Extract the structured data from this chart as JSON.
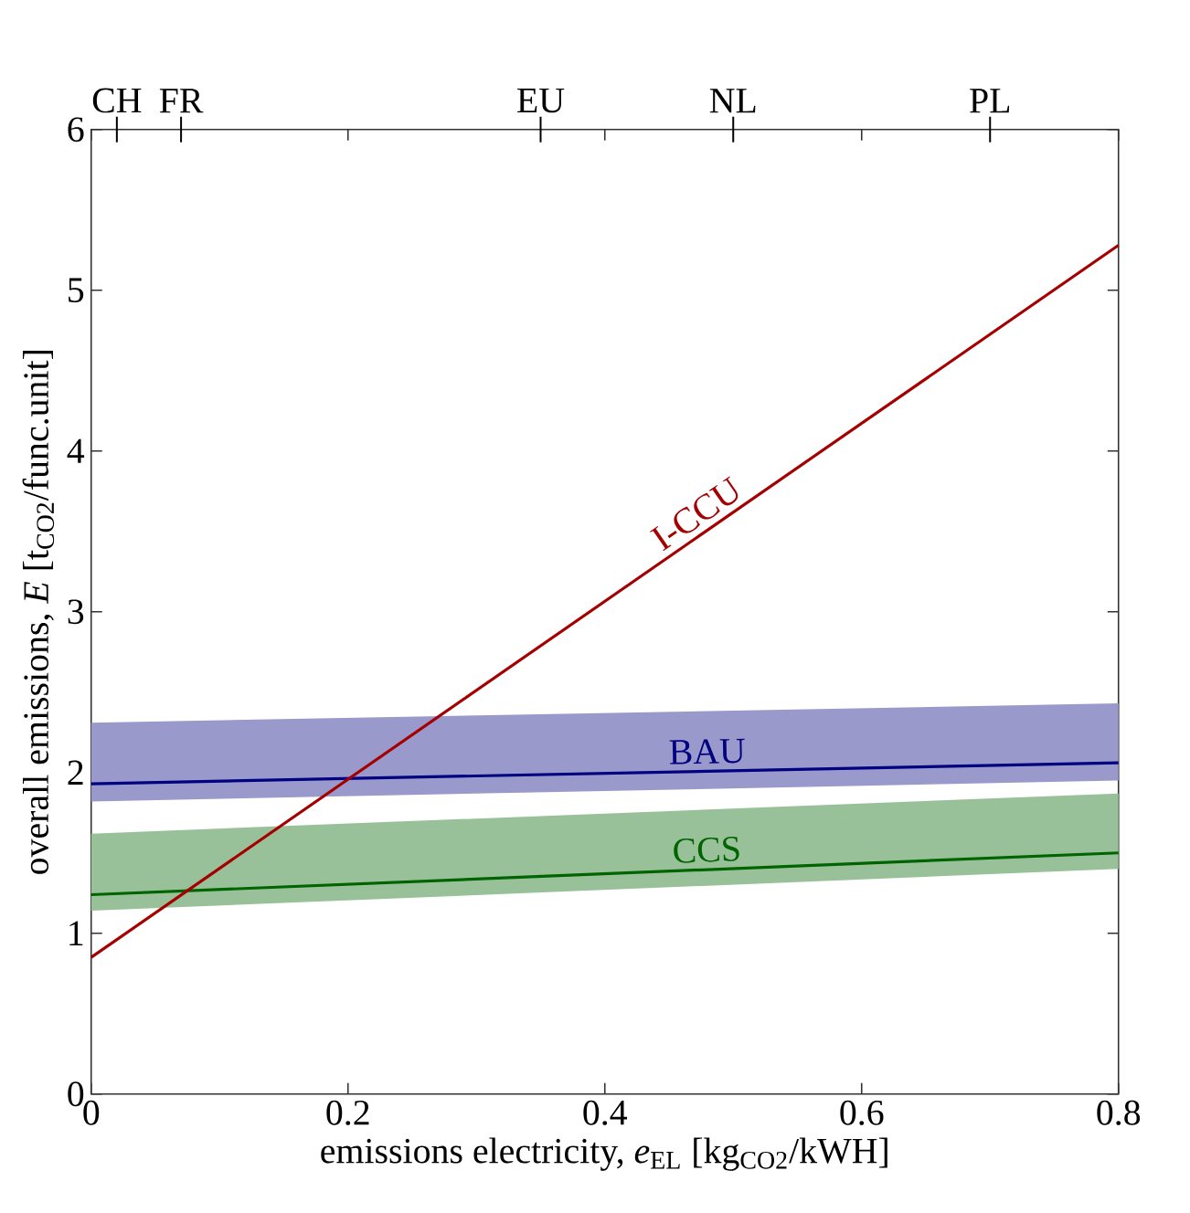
{
  "chart_data": {
    "type": "line",
    "xlabel": "emissions electricity, *e*$_{EL}$ [kg$_{CO2}$/kWH]",
    "ylabel": "overall emissions, *E* [t$_{CO2}$/func.unit]",
    "x": [
      0,
      0.8
    ],
    "xlim": [
      0,
      0.8
    ],
    "xticks": [
      0,
      0.2,
      0.4,
      0.6,
      0.8
    ],
    "ylim": [
      0,
      6
    ],
    "yticks": [
      0,
      1,
      2,
      3,
      4,
      5,
      6
    ],
    "ref_lines": [
      {
        "axis": "x",
        "value": 0.02,
        "label": "CH"
      },
      {
        "axis": "x",
        "value": 0.07,
        "label": "FR"
      },
      {
        "axis": "x",
        "value": 0.35,
        "label": "EU"
      },
      {
        "axis": "x",
        "value": 0.5,
        "label": "NL"
      },
      {
        "axis": "x",
        "value": 0.7,
        "label": "PL"
      }
    ],
    "grid": false,
    "marker": "none",
    "line_style": "solid",
    "series": [
      {
        "name": "BAU",
        "color": "#000080",
        "values": [
          1.93,
          2.06
        ],
        "lower": [
          1.82,
          1.95
        ],
        "upper": [
          2.31,
          2.43
        ]
      },
      {
        "name": "CCS",
        "color": "#006400",
        "values": [
          1.24,
          1.5
        ],
        "lower": [
          1.14,
          1.4
        ],
        "upper": [
          1.62,
          1.87
        ]
      },
      {
        "name": "I-CCU",
        "color": "#a50000",
        "values": [
          0.85,
          5.28
        ]
      }
    ]
  }
}
